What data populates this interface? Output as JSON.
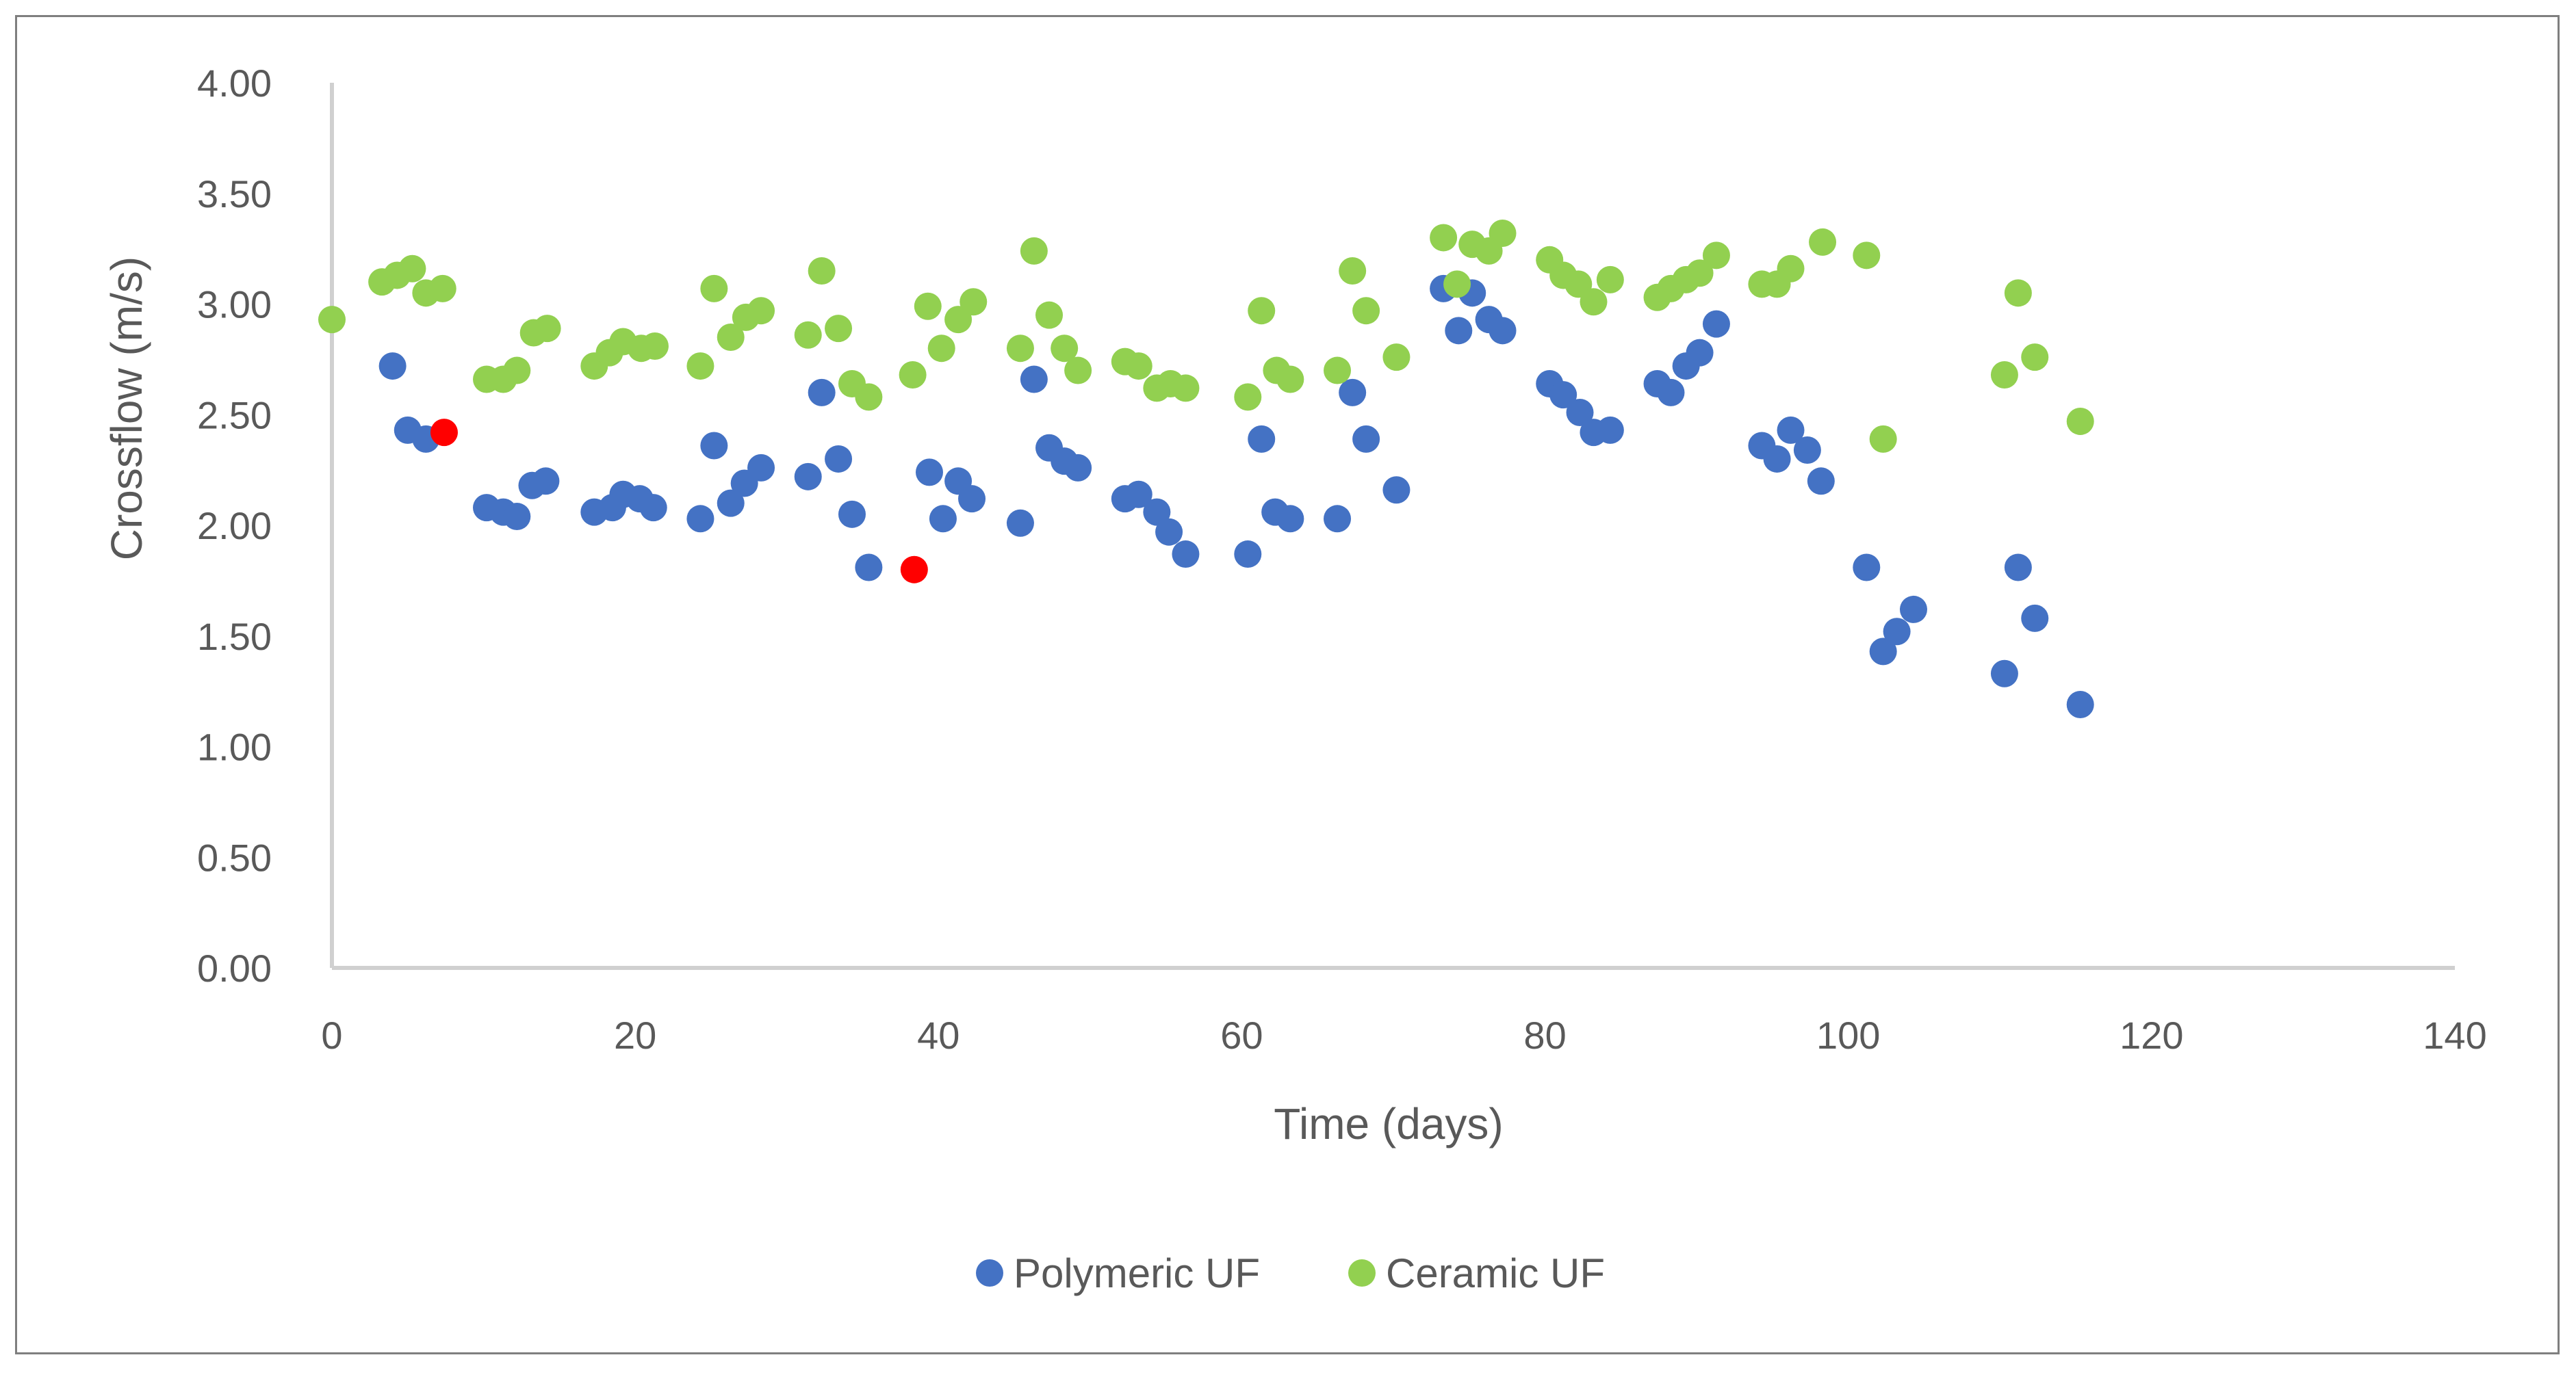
{
  "chart_data": {
    "type": "scatter",
    "title": "",
    "xlabel": "Time (days)",
    "ylabel": "Crossflow (m/s)",
    "xlim": [
      0,
      140
    ],
    "ylim": [
      0,
      4
    ],
    "x_ticks": [
      "0",
      "20",
      "40",
      "60",
      "80",
      "100",
      "120",
      "140"
    ],
    "x_tick_values": [
      0,
      20,
      40,
      60,
      80,
      100,
      120,
      140
    ],
    "y_ticks": [
      "0.00",
      "0.50",
      "1.00",
      "1.50",
      "2.00",
      "2.50",
      "3.00",
      "3.50",
      "4.00"
    ],
    "y_tick_values": [
      0,
      0.5,
      1,
      1.5,
      2,
      2.5,
      3,
      3.5,
      4
    ],
    "grid": false,
    "legend_position": "bottom",
    "series": [
      {
        "name": "Polymeric UF",
        "color": "#4472c4",
        "points": [
          [
            4,
            2.72
          ],
          [
            5,
            2.43
          ],
          [
            6.2,
            2.39
          ],
          [
            10.2,
            2.08
          ],
          [
            11.3,
            2.06
          ],
          [
            12.2,
            2.04
          ],
          [
            13.2,
            2.18
          ],
          [
            14.1,
            2.2
          ],
          [
            17.3,
            2.06
          ],
          [
            18.5,
            2.08
          ],
          [
            19.2,
            2.14
          ],
          [
            20.3,
            2.12
          ],
          [
            21.2,
            2.08
          ],
          [
            24.3,
            2.03
          ],
          [
            25.2,
            2.36
          ],
          [
            26.3,
            2.1
          ],
          [
            27.2,
            2.19
          ],
          [
            28.3,
            2.26
          ],
          [
            31.4,
            2.22
          ],
          [
            32.3,
            2.6
          ],
          [
            33.4,
            2.3
          ],
          [
            34.3,
            2.05
          ],
          [
            35.4,
            1.81
          ],
          [
            39.4,
            2.24
          ],
          [
            40.3,
            2.03
          ],
          [
            41.3,
            2.2
          ],
          [
            42.2,
            2.12
          ],
          [
            45.4,
            2.01
          ],
          [
            46.3,
            2.66
          ],
          [
            47.3,
            2.35
          ],
          [
            48.3,
            2.29
          ],
          [
            49.2,
            2.26
          ],
          [
            52.3,
            2.12
          ],
          [
            53.2,
            2.14
          ],
          [
            54.4,
            2.06
          ],
          [
            55.2,
            1.97
          ],
          [
            56.3,
            1.87
          ],
          [
            60.4,
            1.87
          ],
          [
            61.3,
            2.39
          ],
          [
            62.2,
            2.06
          ],
          [
            63.2,
            2.03
          ],
          [
            66.3,
            2.03
          ],
          [
            67.3,
            2.6
          ],
          [
            68.2,
            2.39
          ],
          [
            70.2,
            2.16
          ],
          [
            73.3,
            3.07
          ],
          [
            74.3,
            2.88
          ],
          [
            75.2,
            3.05
          ],
          [
            76.3,
            2.93
          ],
          [
            77.2,
            2.88
          ],
          [
            80.3,
            2.64
          ],
          [
            81.2,
            2.59
          ],
          [
            82.3,
            2.51
          ],
          [
            83.2,
            2.42
          ],
          [
            84.3,
            2.43
          ],
          [
            87.4,
            2.64
          ],
          [
            88.3,
            2.6
          ],
          [
            89.3,
            2.72
          ],
          [
            90.2,
            2.78
          ],
          [
            91.3,
            2.91
          ],
          [
            94.3,
            2.36
          ],
          [
            95.3,
            2.3
          ],
          [
            96.2,
            2.43
          ],
          [
            97.3,
            2.34
          ],
          [
            98.2,
            2.2
          ],
          [
            101.2,
            1.81
          ],
          [
            102.3,
            1.43
          ],
          [
            103.2,
            1.52
          ],
          [
            104.3,
            1.62
          ],
          [
            110.3,
            1.33
          ],
          [
            111.2,
            1.81
          ],
          [
            112.3,
            1.58
          ],
          [
            115.3,
            1.19
          ]
        ]
      },
      {
        "name": "Ceramic UF",
        "color": "#92d050",
        "points": [
          [
            0,
            2.93
          ],
          [
            3.3,
            3.1
          ],
          [
            4.3,
            3.13
          ],
          [
            5.3,
            3.16
          ],
          [
            6.2,
            3.05
          ],
          [
            7.3,
            3.07
          ],
          [
            10.2,
            2.66
          ],
          [
            11.3,
            2.66
          ],
          [
            12.2,
            2.7
          ],
          [
            13.3,
            2.87
          ],
          [
            14.2,
            2.89
          ],
          [
            17.3,
            2.72
          ],
          [
            18.3,
            2.78
          ],
          [
            19.2,
            2.83
          ],
          [
            20.4,
            2.8
          ],
          [
            21.3,
            2.81
          ],
          [
            24.3,
            2.72
          ],
          [
            25.2,
            3.07
          ],
          [
            26.3,
            2.85
          ],
          [
            27.3,
            2.94
          ],
          [
            28.3,
            2.97
          ],
          [
            31.4,
            2.86
          ],
          [
            32.3,
            3.15
          ],
          [
            33.4,
            2.89
          ],
          [
            34.3,
            2.64
          ],
          [
            35.4,
            2.58
          ],
          [
            38.3,
            2.68
          ],
          [
            39.3,
            2.99
          ],
          [
            40.2,
            2.8
          ],
          [
            41.3,
            2.93
          ],
          [
            42.3,
            3.01
          ],
          [
            45.4,
            2.8
          ],
          [
            46.3,
            3.24
          ],
          [
            47.3,
            2.95
          ],
          [
            48.3,
            2.8
          ],
          [
            49.2,
            2.7
          ],
          [
            52.3,
            2.74
          ],
          [
            53.2,
            2.72
          ],
          [
            54.4,
            2.62
          ],
          [
            55.3,
            2.64
          ],
          [
            56.3,
            2.62
          ],
          [
            60.4,
            2.58
          ],
          [
            61.3,
            2.97
          ],
          [
            62.3,
            2.7
          ],
          [
            63.2,
            2.66
          ],
          [
            66.3,
            2.7
          ],
          [
            67.3,
            3.15
          ],
          [
            68.2,
            2.97
          ],
          [
            70.2,
            2.76
          ],
          [
            73.3,
            3.3
          ],
          [
            74.2,
            3.09
          ],
          [
            75.2,
            3.27
          ],
          [
            76.3,
            3.24
          ],
          [
            77.2,
            3.32
          ],
          [
            80.3,
            3.2
          ],
          [
            81.2,
            3.13
          ],
          [
            82.2,
            3.09
          ],
          [
            83.2,
            3.01
          ],
          [
            84.3,
            3.11
          ],
          [
            87.4,
            3.03
          ],
          [
            88.3,
            3.07
          ],
          [
            89.3,
            3.11
          ],
          [
            90.2,
            3.14
          ],
          [
            91.3,
            3.22
          ],
          [
            94.3,
            3.09
          ],
          [
            95.3,
            3.09
          ],
          [
            96.2,
            3.16
          ],
          [
            98.3,
            3.28
          ],
          [
            101.2,
            3.22
          ],
          [
            102.3,
            2.39
          ],
          [
            110.3,
            2.68
          ],
          [
            111.2,
            3.05
          ],
          [
            112.3,
            2.76
          ],
          [
            115.3,
            2.47
          ]
        ]
      }
    ],
    "highlighted_points": {
      "color": "#ff0000",
      "points": [
        [
          7.4,
          2.42
        ],
        [
          38.4,
          1.8
        ]
      ]
    }
  }
}
